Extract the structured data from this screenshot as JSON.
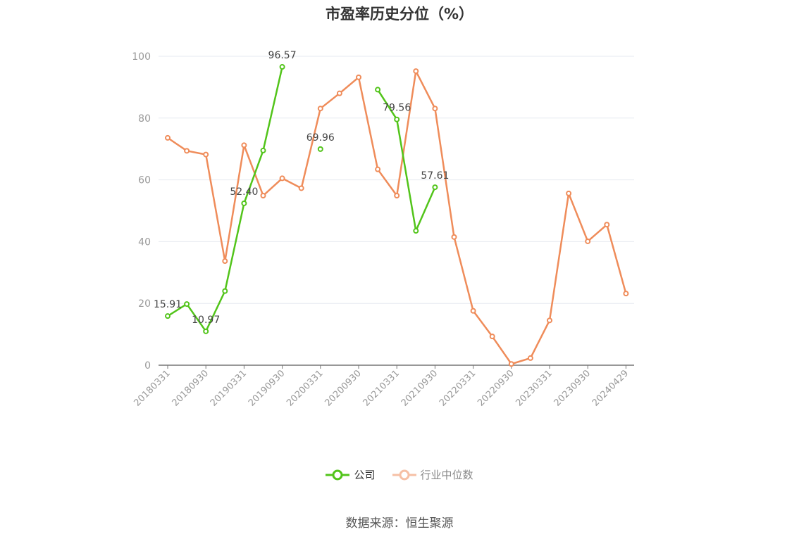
{
  "chart_data": {
    "type": "line",
    "title": "市盈率历史分位（%）",
    "x": [
      "20180331",
      "20180630",
      "20180930",
      "20181231",
      "20190331",
      "20190630",
      "20190930",
      "20191231",
      "20200331",
      "20200630",
      "20200930",
      "20201231",
      "20210331",
      "20210630",
      "20210930",
      "20211231",
      "20220331",
      "20220630",
      "20220930",
      "20221231",
      "20230331",
      "20230630",
      "20230930",
      "20231231",
      "20240429"
    ],
    "xtick_labels": [
      "20180331",
      "20180930",
      "20190331",
      "20190930",
      "20200331",
      "20200930",
      "20210331",
      "20210930",
      "20220331",
      "20220930",
      "20230331",
      "20230930",
      "20240429"
    ],
    "ylim": [
      0,
      100
    ],
    "yticks": [
      0,
      20,
      40,
      60,
      80,
      100
    ],
    "grid": true,
    "legend_position": "bottom",
    "series": [
      {
        "name": "公司",
        "color": "#52c41a",
        "values": [
          15.91,
          19.8,
          10.97,
          24.0,
          52.4,
          69.5,
          96.57,
          null,
          69.96,
          null,
          null,
          89.2,
          79.56,
          43.5,
          57.61,
          null,
          null,
          null,
          null,
          null,
          null,
          null,
          null,
          null,
          null
        ],
        "labels": {
          "0": "15.91",
          "2": "10.97",
          "4": "52.40",
          "6": "96.57",
          "8": "69.96",
          "12": "79.56",
          "14": "57.61"
        }
      },
      {
        "name": "行业中位数",
        "color": "#ef8c5a",
        "values": [
          73.6,
          69.4,
          68.2,
          33.7,
          71.2,
          54.9,
          60.5,
          57.3,
          83.1,
          88.0,
          93.2,
          63.4,
          54.9,
          95.2,
          83.1,
          41.5,
          17.6,
          9.3,
          0.4,
          2.3,
          14.5,
          55.6,
          40.1,
          45.5,
          23.2
        ]
      }
    ]
  },
  "legend": {
    "company": "公司",
    "industry": "行业中位数"
  },
  "source": "数据来源：恒生聚源"
}
